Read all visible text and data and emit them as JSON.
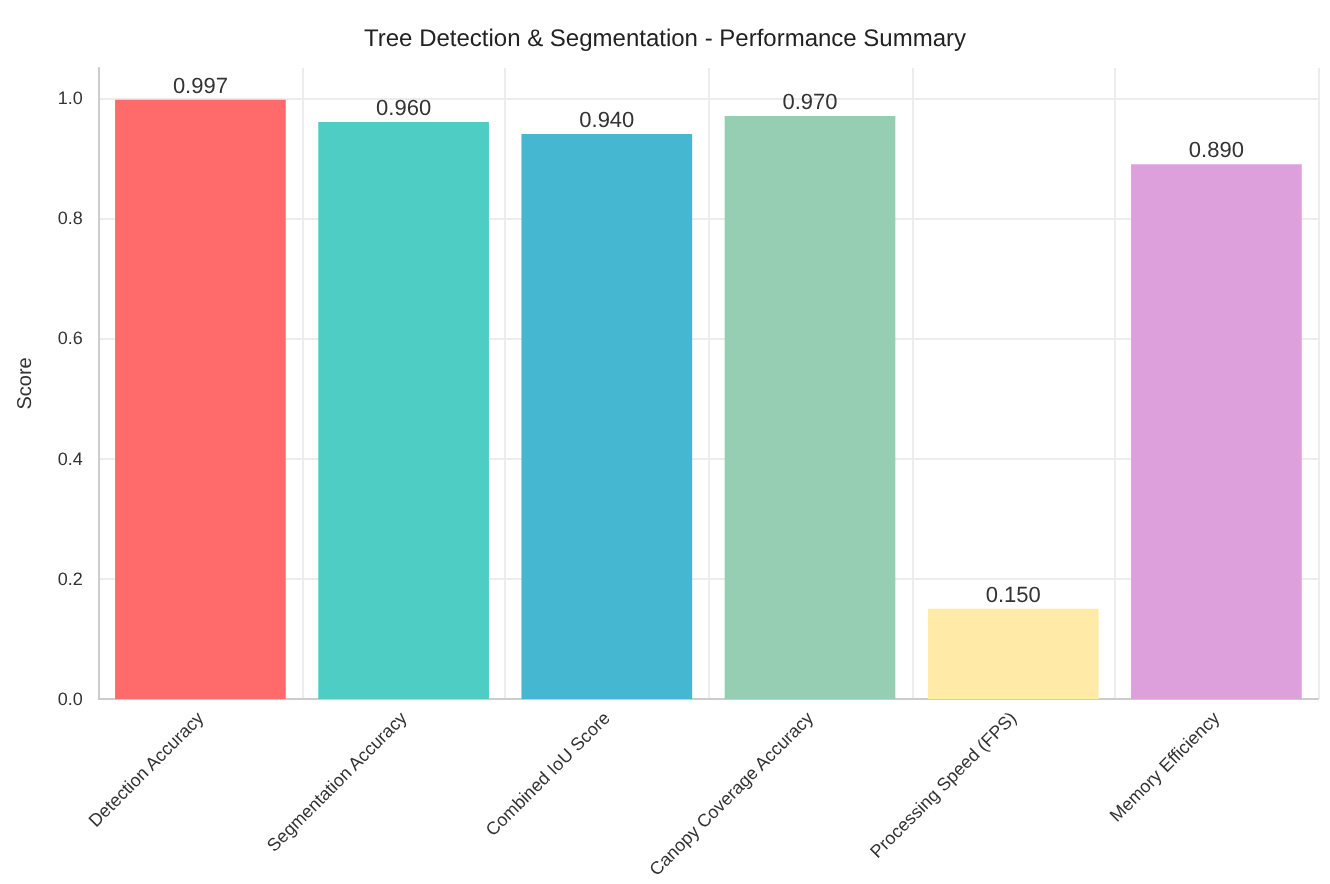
{
  "chart_data": {
    "type": "bar",
    "title": "Tree Detection & Segmentation - Performance Summary",
    "ylabel": "Score",
    "categories": [
      "Detection Accuracy",
      "Segmentation Accuracy",
      "Combined IoU Score",
      "Canopy Coverage Accuracy",
      "Processing Speed (FPS)",
      "Memory Efficiency"
    ],
    "values": [
      0.997,
      0.96,
      0.94,
      0.97,
      0.15,
      0.89
    ],
    "colors": [
      "#ff6b6b",
      "#4ecdc4",
      "#45b7d1",
      "#96ceb4",
      "#ffeaa7",
      "#dda0dd"
    ],
    "value_labels": [
      "0.997",
      "0.960",
      "0.940",
      "0.970",
      "0.150",
      "0.890"
    ],
    "ylim": [
      0,
      1.05
    ],
    "yticks": [
      {
        "value": 0,
        "label": "0.0"
      },
      0.2,
      0.4,
      0.6,
      0.8,
      {
        "value": 1,
        "label": "1.0"
      }
    ],
    "grid": true
  }
}
